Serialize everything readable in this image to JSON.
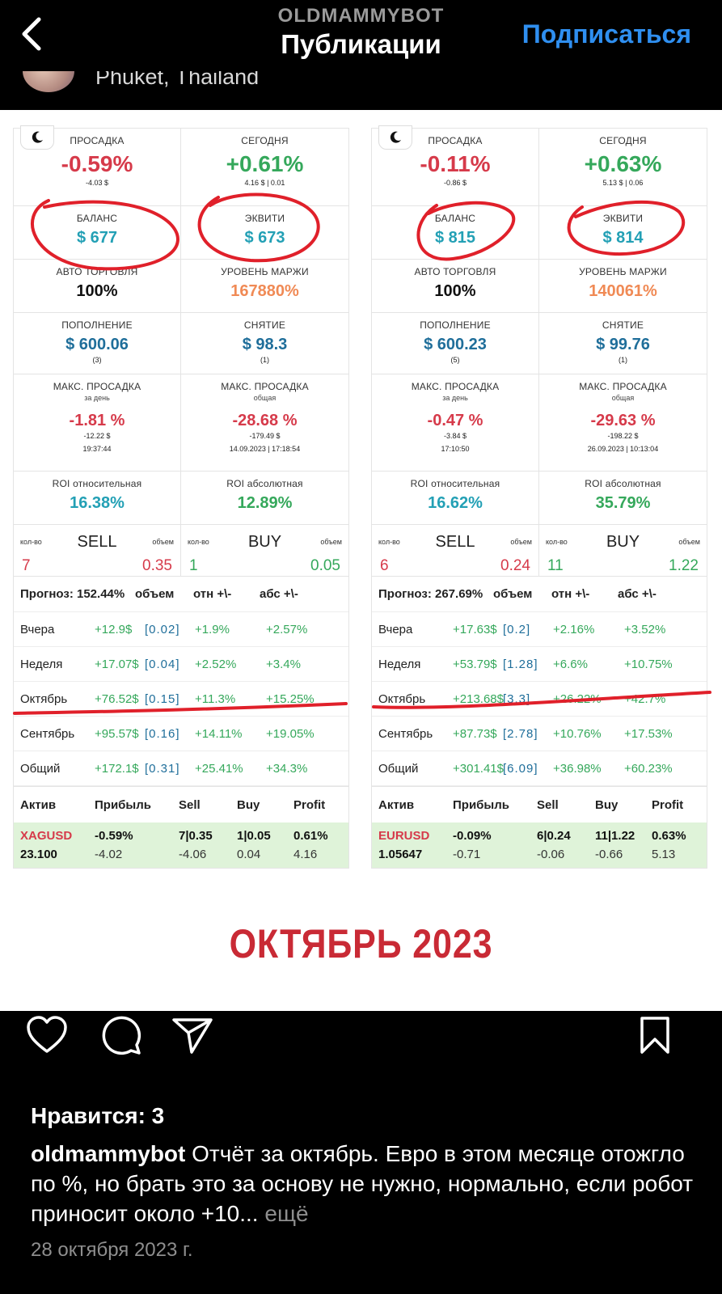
{
  "header": {
    "username": "OLDMAMMYBOT",
    "title": "Публикации",
    "follow_label": "Подписаться",
    "location": "Phuket, Thailand"
  },
  "panels": [
    {
      "drawdown_label": "ПРОСАДКА",
      "drawdown_value": "-0.59%",
      "drawdown_sub": "-4.03 $",
      "today_label": "СЕГОДНЯ",
      "today_value": "+0.61%",
      "today_sub": "4.16 $ | 0.01",
      "balance_label": "БАЛАНС",
      "balance_value": "$ 677",
      "equity_label": "ЭКВИТИ",
      "equity_value": "$ 673",
      "auto_label": "АВТО ТОРГОВЛЯ",
      "auto_value": "100%",
      "margin_label": "УРОВЕНЬ МАРЖИ",
      "margin_value": "167880%",
      "deposit_label": "ПОПОЛНЕНИЕ",
      "deposit_value": "$ 600.06",
      "deposit_count": "(3)",
      "withdraw_label": "СНЯТИЕ",
      "withdraw_value": "$ 98.3",
      "withdraw_count": "(1)",
      "maxdd_day_label": "МАКС. ПРОСАДКА",
      "maxdd_day_sub": "за день",
      "maxdd_day_value": "-1.81 %",
      "maxdd_day_amount": "-12.22 $",
      "maxdd_day_time": "19:37:44",
      "maxdd_total_label": "МАКС. ПРОСАДКА",
      "maxdd_total_sub": "общая",
      "maxdd_total_value": "-28.68 %",
      "maxdd_total_amount": "-179.49 $",
      "maxdd_total_time": "14.09.2023 | 17:18:54",
      "roi_rel_label": "ROI относительная",
      "roi_rel_value": "16.38%",
      "roi_abs_label": "ROI абсолютная",
      "roi_abs_value": "12.89%",
      "kol_label": "кол-во",
      "obj_label": "объем",
      "sell_label": "SELL",
      "sell_count": "7",
      "sell_volume": "0.35",
      "buy_label": "BUY",
      "buy_count": "1",
      "buy_volume": "0.05",
      "forecast_label": "Прогноз: 152.44%",
      "col_volume": "объем",
      "col_rel": "отн +\\-",
      "col_abs": "абс +\\-",
      "rows": [
        {
          "name": "Вчера",
          "val": "+12.9$",
          "vol": "[0.02]",
          "rel": "+1.9%",
          "abs": "+2.57%"
        },
        {
          "name": "Неделя",
          "val": "+17.07$",
          "vol": "[0.04]",
          "rel": "+2.52%",
          "abs": "+3.4%"
        },
        {
          "name": "Октябрь",
          "val": "+76.52$",
          "vol": "[0.15]",
          "rel": "+11.3%",
          "abs": "+15.25%"
        },
        {
          "name": "Сентябрь",
          "val": "+95.57$",
          "vol": "[0.16]",
          "rel": "+14.11%",
          "abs": "+19.05%"
        },
        {
          "name": "Общий",
          "val": "+172.1$",
          "vol": "[0.31]",
          "rel": "+25.41%",
          "abs": "+34.3%"
        }
      ],
      "asset_cols": [
        "Актив",
        "Прибыль",
        "Sell",
        "Buy",
        "Profit"
      ],
      "asset_symbol": "XAGUSD",
      "asset_price": "23.100",
      "asset_profit_pct": "-0.59%",
      "asset_profit_amt": "-4.02",
      "asset_sell": "7|0.35",
      "asset_sell_amt": "-4.06",
      "asset_buy": "1|0.05",
      "asset_buy_amt": "0.04",
      "asset_total_pct": "0.61%",
      "asset_total_amt": "4.16"
    },
    {
      "drawdown_label": "ПРОСАДКА",
      "drawdown_value": "-0.11%",
      "drawdown_sub": "-0.86 $",
      "today_label": "СЕГОДНЯ",
      "today_value": "+0.63%",
      "today_sub": "5.13 $ | 0.06",
      "balance_label": "БАЛАНС",
      "balance_value": "$ 815",
      "equity_label": "ЭКВИТИ",
      "equity_value": "$ 814",
      "auto_label": "АВТО ТОРГОВЛЯ",
      "auto_value": "100%",
      "margin_label": "УРОВЕНЬ МАРЖИ",
      "margin_value": "140061%",
      "deposit_label": "ПОПОЛНЕНИЕ",
      "deposit_value": "$ 600.23",
      "deposit_count": "(5)",
      "withdraw_label": "СНЯТИЕ",
      "withdraw_value": "$ 99.76",
      "withdraw_count": "(1)",
      "maxdd_day_label": "МАКС. ПРОСАДКА",
      "maxdd_day_sub": "за день",
      "maxdd_day_value": "-0.47 %",
      "maxdd_day_amount": "-3.84 $",
      "maxdd_day_time": "17:10:50",
      "maxdd_total_label": "МАКС. ПРОСАДКА",
      "maxdd_total_sub": "общая",
      "maxdd_total_value": "-29.63 %",
      "maxdd_total_amount": "-198.22 $",
      "maxdd_total_time": "26.09.2023 | 10:13:04",
      "roi_rel_label": "ROI относительная",
      "roi_rel_value": "16.62%",
      "roi_abs_label": "ROI абсолютная",
      "roi_abs_value": "35.79%",
      "kol_label": "кол-во",
      "obj_label": "объем",
      "sell_label": "SELL",
      "sell_count": "6",
      "sell_volume": "0.24",
      "buy_label": "BUY",
      "buy_count": "11",
      "buy_volume": "1.22",
      "forecast_label": "Прогноз: 267.69%",
      "col_volume": "объем",
      "col_rel": "отн +\\-",
      "col_abs": "абс +\\-",
      "rows": [
        {
          "name": "Вчера",
          "val": "+17.63$",
          "vol": "[0.2]",
          "rel": "+2.16%",
          "abs": "+3.52%"
        },
        {
          "name": "Неделя",
          "val": "+53.79$",
          "vol": "[1.28]",
          "rel": "+6.6%",
          "abs": "+10.75%"
        },
        {
          "name": "Октябрь",
          "val": "+213.68$",
          "vol": "[3.3]",
          "rel": "+26.22%",
          "abs": "+42.7%"
        },
        {
          "name": "Сентябрь",
          "val": "+87.73$",
          "vol": "[2.78]",
          "rel": "+10.76%",
          "abs": "+17.53%"
        },
        {
          "name": "Общий",
          "val": "+301.41$",
          "vol": "[6.09]",
          "rel": "+36.98%",
          "abs": "+60.23%"
        }
      ],
      "asset_cols": [
        "Актив",
        "Прибыль",
        "Sell",
        "Buy",
        "Profit"
      ],
      "asset_symbol": "EURUSD",
      "asset_price": "1.05647",
      "asset_profit_pct": "-0.09%",
      "asset_profit_amt": "-0.71",
      "asset_sell": "6|0.24",
      "asset_sell_amt": "-0.06",
      "asset_buy": "11|1.22",
      "asset_buy_amt": "-0.66",
      "asset_total_pct": "0.63%",
      "asset_total_amt": "5.13"
    }
  ],
  "month_title": "ОКТЯБРЬ 2023",
  "annotation_color": "#e0202a",
  "icons": {
    "back": "chevron-left-icon",
    "like": "heart-icon",
    "comment": "comment-icon",
    "share": "send-icon",
    "save": "bookmark-icon",
    "theme": "moon-icon"
  },
  "post": {
    "likes": "Нравится: 3",
    "caption_user": "oldmammybot",
    "caption_text": " Отчёт за октябрь. Евро в этом месяце отожгло по %, но брать это за основу не нужно, нормально, если робот приносит около +10...",
    "more_label": " ещё",
    "date": "28 октября 2023 г."
  }
}
